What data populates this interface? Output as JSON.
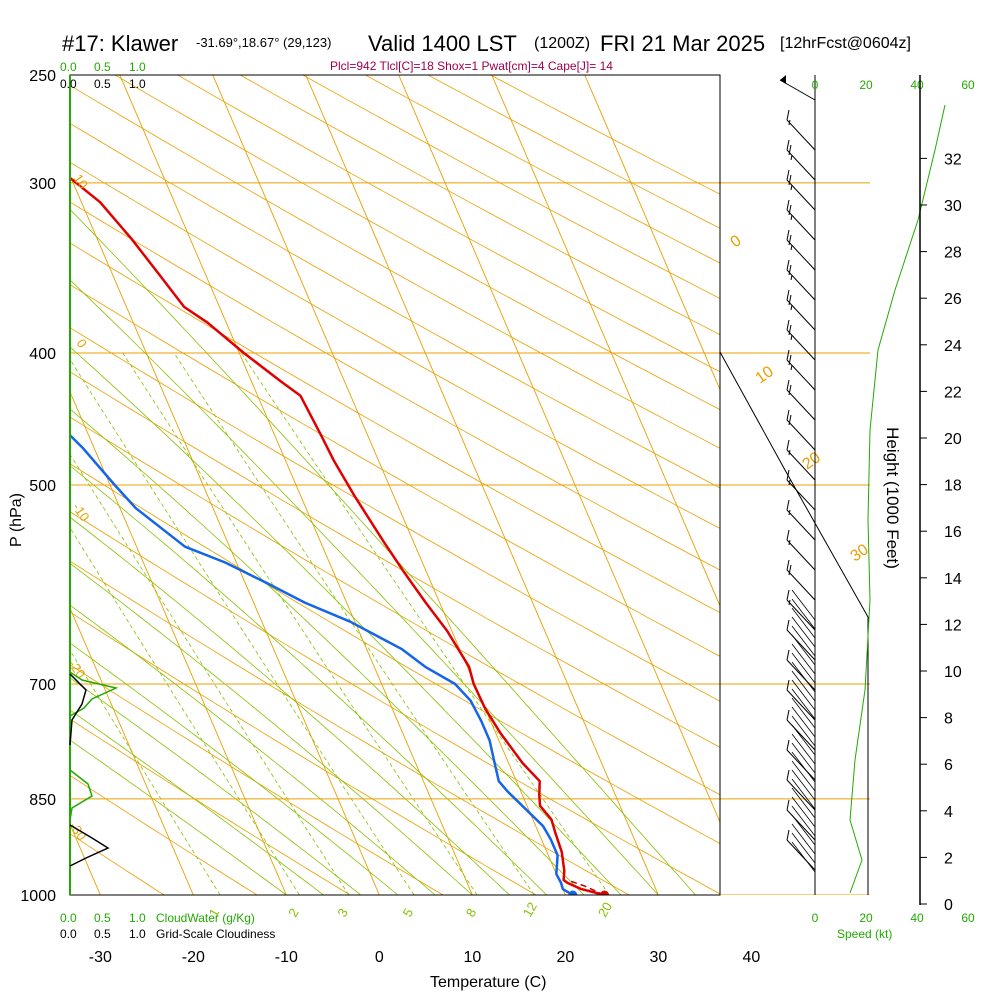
{
  "header": {
    "station": "#17: Klawer",
    "coords": "-31.69°,18.67° (29,123)",
    "valid": "Valid 1400 LST",
    "utc": "(1200Z)",
    "date": "FRI 21 Mar 2025",
    "forecast": "[12hrFcst@0604z]",
    "params": "Plcl=942 Tlcl[C]=18 Shox=1 Pwat[cm]=4 Cape[J]= 14"
  },
  "chart_data": {
    "type": "line",
    "title": "#17: Klawer  Valid 1400 LST (1200Z) FRI 21 Mar 2025",
    "xlabel": "Temperature (C)",
    "ylabel": "P (hPa)",
    "y2label": "Height (1000 Feet)",
    "x_ticks": [
      "-30",
      "-20",
      "-10",
      "0",
      "10",
      "20",
      "30",
      "40"
    ],
    "y_ticks": [
      "250",
      "300",
      "400",
      "500",
      "700",
      "850",
      "1000"
    ],
    "height_ticks": [
      "0",
      "2",
      "4",
      "6",
      "8",
      "10",
      "12",
      "14",
      "16",
      "18",
      "20",
      "22",
      "24",
      "26",
      "28",
      "30",
      "32"
    ],
    "xlim": [
      -34,
      36
    ],
    "ylim": [
      1000,
      250
    ],
    "series": [
      {
        "name": "Temperature",
        "color": "#e00000",
        "points": [
          [
            24.2,
            1000
          ],
          [
            22.0,
            990
          ],
          [
            20.8,
            980
          ],
          [
            20.5,
            975
          ],
          [
            21.0,
            960
          ],
          [
            21.6,
            930
          ],
          [
            21.8,
            900
          ],
          [
            22.0,
            880
          ],
          [
            21.4,
            860
          ],
          [
            21.8,
            845
          ],
          [
            22.5,
            825
          ],
          [
            21.5,
            800
          ],
          [
            20.5,
            760
          ],
          [
            20.0,
            730
          ],
          [
            19.9,
            700
          ],
          [
            20.2,
            680
          ],
          [
            19.5,
            640
          ],
          [
            18.5,
            610
          ],
          [
            17.6,
            580
          ],
          [
            16.8,
            550
          ],
          [
            15.8,
            510
          ],
          [
            15.2,
            480
          ],
          [
            15.0,
            460
          ],
          [
            14.6,
            430
          ],
          [
            13.2,
            420
          ],
          [
            10.5,
            400
          ],
          [
            8.0,
            380
          ],
          [
            6.2,
            370
          ],
          [
            5.0,
            350
          ],
          [
            3.7,
            330
          ],
          [
            2.0,
            310
          ],
          [
            -0.2,
            297
          ],
          [
            -2.5,
            285
          ],
          [
            -4.3,
            275
          ],
          [
            -6.3,
            266
          ]
        ]
      },
      {
        "name": "Dewpoint",
        "color": "#1565e8",
        "points": [
          [
            20.8,
            1000
          ],
          [
            20.0,
            990
          ],
          [
            20.1,
            980
          ],
          [
            20.0,
            965
          ],
          [
            20.5,
            950
          ],
          [
            21.0,
            935
          ],
          [
            21.0,
            910
          ],
          [
            20.8,
            890
          ],
          [
            19.5,
            860
          ],
          [
            18.6,
            840
          ],
          [
            18.1,
            825
          ],
          [
            18.5,
            800
          ],
          [
            19.0,
            770
          ],
          [
            19.0,
            745
          ],
          [
            18.8,
            720
          ],
          [
            17.9,
            700
          ],
          [
            15.5,
            680
          ],
          [
            13.8,
            660
          ],
          [
            9.5,
            630
          ],
          [
            5.5,
            610
          ],
          [
            2.3,
            590
          ],
          [
            -1.2,
            570
          ],
          [
            -4.8,
            555
          ],
          [
            -8.3,
            520
          ],
          [
            -9.5,
            500
          ],
          [
            -11.2,
            470
          ],
          [
            -13.6,
            440
          ],
          [
            -16.0,
            420
          ],
          [
            -18.5,
            400
          ],
          [
            -20.0,
            387
          ],
          [
            -19.8,
            370
          ],
          [
            -22.6,
            350
          ],
          [
            -22.8,
            335
          ],
          [
            -22.6,
            315
          ],
          [
            -21.3,
            300
          ],
          [
            -20.5,
            290
          ],
          [
            -20.0,
            280
          ],
          [
            -20.2,
            266
          ]
        ]
      }
    ],
    "parcel": {
      "name": "Parcel",
      "color": "#c00000",
      "points": [
        [
          24.2,
          1000
        ],
        [
          22.5,
          985
        ],
        [
          20.9,
          975
        ]
      ]
    },
    "surface_points": {
      "temperature": 24.2,
      "dewpoint": 20.8
    },
    "isotherm_labels": [
      "0",
      "10",
      "20",
      "30",
      "-10",
      "-20",
      "-30"
    ],
    "mixing_ratio_labels": [
      "1",
      "2",
      "3",
      "5",
      "8",
      "12",
      "20"
    ],
    "cloud_axis": {
      "ticks": [
        "0.0",
        "0.5",
        "1.0"
      ],
      "cloudwater_label": "CloudWater (g/Kg)",
      "cloudiness_label": "Grid-Scale Cloudiness"
    },
    "wind_axis": {
      "ticks": [
        "0",
        "20",
        "40",
        "60"
      ],
      "label": "Speed (kt)"
    },
    "wind_barbs_kt": [
      15,
      25,
      25,
      25,
      25,
      25,
      25,
      25,
      25,
      20,
      20,
      15,
      15,
      15,
      15,
      20,
      15,
      10,
      10,
      10,
      10,
      10,
      10,
      10,
      10,
      10
    ]
  },
  "colors": {
    "isotherm": "#e8a000",
    "isobar": "#e8a000",
    "dry_adiabat": "#e8a000",
    "moist_adiabat": "#88c000",
    "mixing_ratio": "#88c000",
    "cloud": "#22aa00"
  }
}
